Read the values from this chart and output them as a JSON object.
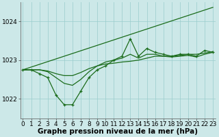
{
  "xlabel": "Graphe pression niveau de la mer (hPa)",
  "x": [
    0,
    1,
    2,
    3,
    4,
    5,
    6,
    7,
    8,
    9,
    10,
    11,
    12,
    13,
    14,
    15,
    16,
    17,
    18,
    19,
    20,
    21,
    22,
    23
  ],
  "y_line_trend": [
    1022.75,
    1022.82,
    1022.89,
    1022.96,
    1023.03,
    1023.1,
    1023.17,
    1023.24,
    1023.31,
    1023.38,
    1023.45,
    1023.52,
    1023.59,
    1023.66,
    1023.73,
    1023.8,
    1023.87,
    1023.94,
    1024.01,
    1024.08,
    1024.15,
    1024.22,
    1024.29,
    1024.36
  ],
  "y_line_smooth": [
    1022.75,
    1022.75,
    1022.75,
    1022.72,
    1022.65,
    1022.6,
    1022.6,
    1022.68,
    1022.78,
    1022.85,
    1022.9,
    1022.92,
    1022.95,
    1022.97,
    1023.0,
    1023.05,
    1023.1,
    1023.1,
    1023.1,
    1023.12,
    1023.15,
    1023.15,
    1023.18,
    1023.22
  ],
  "y_line_mid": [
    1022.75,
    1022.75,
    1022.75,
    1022.7,
    1022.55,
    1022.4,
    1022.35,
    1022.5,
    1022.7,
    1022.85,
    1022.95,
    1023.0,
    1023.05,
    1023.15,
    1023.05,
    1023.15,
    1023.15,
    1023.1,
    1023.08,
    1023.1,
    1023.12,
    1023.08,
    1023.15,
    1023.2
  ],
  "y_line_spiky": [
    1022.75,
    1022.75,
    1022.65,
    1022.55,
    1022.1,
    1021.85,
    1021.85,
    1022.2,
    1022.55,
    1022.75,
    1022.85,
    1023.0,
    1023.1,
    1023.55,
    1023.1,
    1023.3,
    1023.2,
    1023.15,
    1023.1,
    1023.15,
    1023.15,
    1023.1,
    1023.25,
    1023.2
  ],
  "line_color": "#1a6b1a",
  "bg_color": "#cce8e8",
  "grid_color": "#99cccc",
  "ylim": [
    1021.5,
    1024.5
  ],
  "yticks": [
    1022,
    1023,
    1024
  ],
  "xticks": [
    0,
    1,
    2,
    3,
    4,
    5,
    6,
    7,
    8,
    9,
    10,
    11,
    12,
    13,
    14,
    15,
    16,
    17,
    18,
    19,
    20,
    21,
    22,
    23
  ],
  "label_fontsize": 7.5,
  "tick_fontsize": 6.5
}
